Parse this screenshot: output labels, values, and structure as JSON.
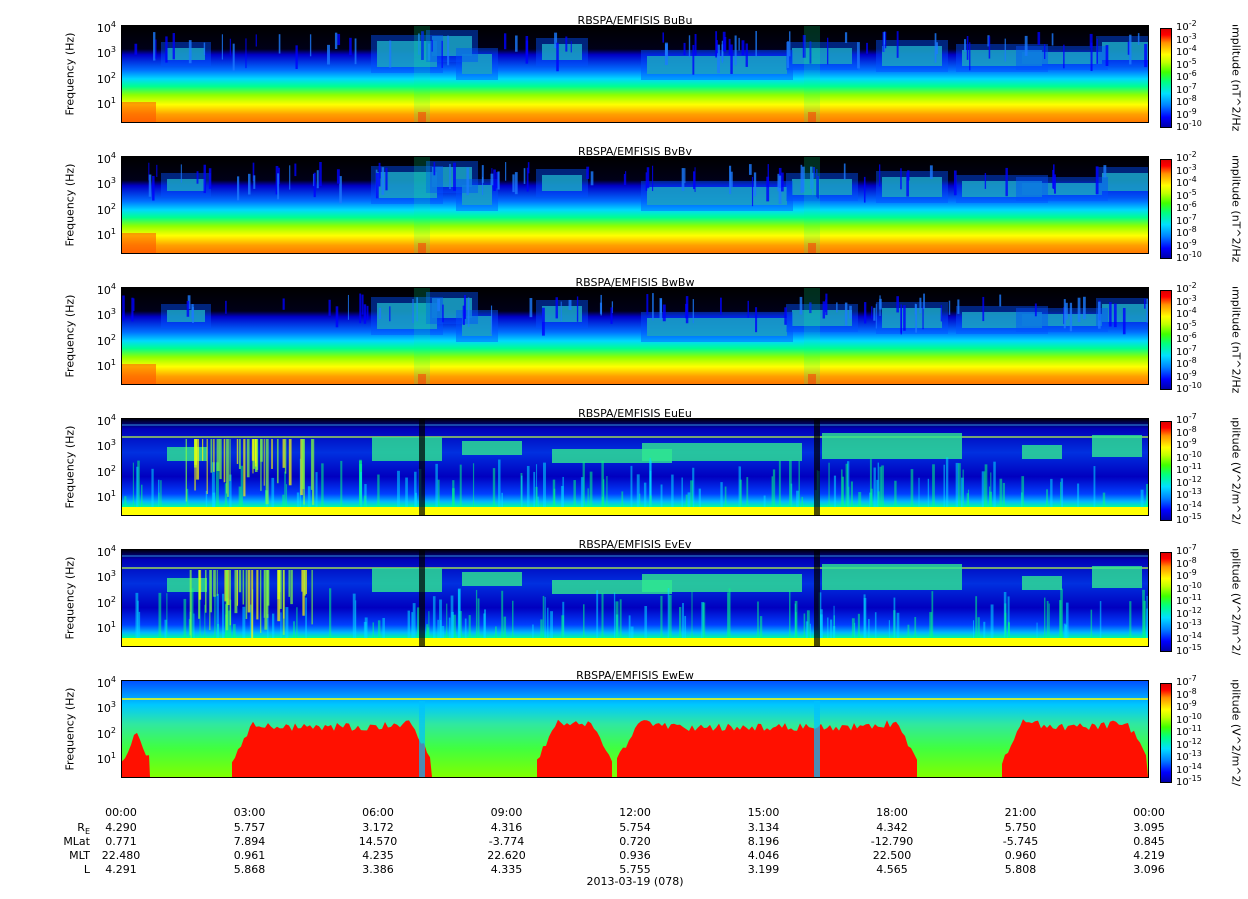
{
  "panels": [
    {
      "title": "RBSPA/EMFISIS  BuBu",
      "ylabel": "Frequency (Hz)",
      "clabel": "amplitude (nT^2/Hz)",
      "cticks": [
        "-2",
        "-3",
        "-4",
        "-5",
        "-6",
        "-7",
        "-8",
        "-9",
        "-10"
      ],
      "kind": "B"
    },
    {
      "title": "RBSPA/EMFISIS  BvBv",
      "ylabel": "Frequency (Hz)",
      "clabel": "amplitude (nT^2/Hz)",
      "cticks": [
        "-2",
        "-3",
        "-4",
        "-5",
        "-6",
        "-7",
        "-8",
        "-9",
        "-10"
      ],
      "kind": "B"
    },
    {
      "title": "RBSPA/EMFISIS  BwBw",
      "ylabel": "Frequency (Hz)",
      "clabel": "amplitude (nT^2/Hz)",
      "cticks": [
        "-2",
        "-3",
        "-4",
        "-5",
        "-6",
        "-7",
        "-8",
        "-9",
        "-10"
      ],
      "kind": "B"
    },
    {
      "title": "RBSPA/EMFISIS  EuEu",
      "ylabel": "Frequency (Hz)",
      "clabel": "mplitude (V^2/m^2/H",
      "cticks": [
        "-7",
        "-8",
        "-9",
        "-10",
        "-11",
        "-12",
        "-13",
        "-14",
        "-15"
      ],
      "kind": "E"
    },
    {
      "title": "RBSPA/EMFISIS  EvEv",
      "ylabel": "Frequency (Hz)",
      "clabel": "mplitude (V^2/m^2/H",
      "cticks": [
        "-7",
        "-8",
        "-9",
        "-10",
        "-11",
        "-12",
        "-13",
        "-14",
        "-15"
      ],
      "kind": "E"
    },
    {
      "title": "RBSPA/EMFISIS  EwEw",
      "ylabel": "Frequency (Hz)",
      "clabel": "mplitude (V^2/m^2/H",
      "cticks": [
        "-7",
        "-8",
        "-9",
        "-10",
        "-11",
        "-12",
        "-13",
        "-14",
        "-15"
      ],
      "kind": "Ew"
    }
  ],
  "yticks": [
    {
      "base": "10",
      "exp": "4"
    },
    {
      "base": "10",
      "exp": "3"
    },
    {
      "base": "10",
      "exp": "2"
    },
    {
      "base": "10",
      "exp": "1"
    }
  ],
  "cbase": "10",
  "x_ticks": [
    "00:00",
    "03:00",
    "06:00",
    "09:00",
    "12:00",
    "15:00",
    "18:00",
    "21:00",
    "00:00"
  ],
  "ephemeris": {
    "labels": [
      "R",
      "MLat",
      "MLT",
      "L"
    ],
    "re_subscript": "E",
    "rows": [
      [
        "4.290",
        "5.757",
        "3.172",
        "4.316",
        "5.754",
        "3.134",
        "4.342",
        "5.750",
        "3.095"
      ],
      [
        "0.771",
        "7.894",
        "14.570",
        "-3.774",
        "0.720",
        "8.196",
        "-12.790",
        "-5.745",
        "0.845"
      ],
      [
        "22.480",
        "0.961",
        "4.235",
        "22.620",
        "0.936",
        "4.046",
        "22.500",
        "0.960",
        "4.219"
      ],
      [
        "4.291",
        "5.868",
        "3.386",
        "4.335",
        "5.755",
        "3.199",
        "4.565",
        "5.808",
        "3.096"
      ]
    ]
  },
  "date": "2013-03-19 (078)",
  "chart_data": {
    "type": "heatmap",
    "x_label": "",
    "x_ticks": [
      "00:00",
      "03:00",
      "06:00",
      "09:00",
      "12:00",
      "15:00",
      "18:00",
      "21:00",
      "00:00"
    ],
    "y_scale": "log",
    "y_ticks": [
      10000,
      1000,
      100,
      10
    ],
    "y_label": "Frequency (Hz)",
    "colorbar_scale": "log",
    "colorbars": {
      "B": {
        "label": "amplitude (nT^2/Hz)",
        "range_exp": [
          -10,
          -2
        ]
      },
      "E": {
        "label": "mplitude (V^2/m^2/H",
        "range_exp": [
          -15,
          -7
        ]
      }
    },
    "panels": [
      "RBSPA/EMFISIS  BuBu",
      "RBSPA/EMFISIS  BvBv",
      "RBSPA/EMFISIS  BwBw",
      "RBSPA/EMFISIS  EuEu",
      "RBSPA/EMFISIS  EvEv",
      "RBSPA/EMFISIS  EwEw"
    ]
  }
}
